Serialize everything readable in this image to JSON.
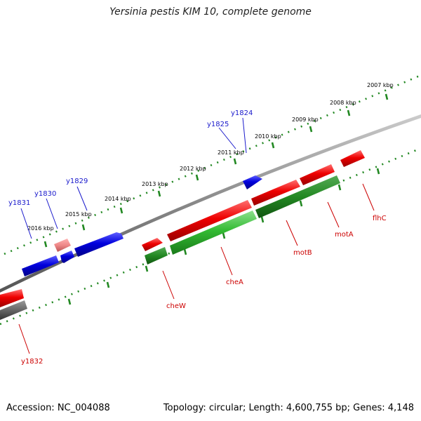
{
  "title": "Yersinia pestis KIM 10, complete genome",
  "footer": {
    "accession": "Accession: NC_004088",
    "summary": "Topology: circular; Length: 4,600,755 bp; Genes: 4,148"
  },
  "colors": {
    "forward_gene": "#ee0000",
    "reverse_gene": "#0000dd",
    "forward_rna": "#22aa22",
    "reverse_pseudo": "#ee8888",
    "backbone": "#888888",
    "ticks": "#228822",
    "label_forward": "#cc0000",
    "label_reverse": "#1a1acc"
  },
  "scale_labels": [
    "2016 kbp",
    "2015 kbp",
    "2014 kbp",
    "2013 kbp",
    "2012 kbp",
    "2011 kbp",
    "2010 kbp",
    "2009 kbp",
    "2008 kbp",
    "2007 kbp"
  ],
  "top_gene_labels": [
    "y1831",
    "y1830",
    "y1829",
    "y1825",
    "y1824"
  ],
  "bottom_gene_labels": [
    "y1832",
    "cheW",
    "cheA",
    "motB",
    "motA",
    "flhC"
  ]
}
